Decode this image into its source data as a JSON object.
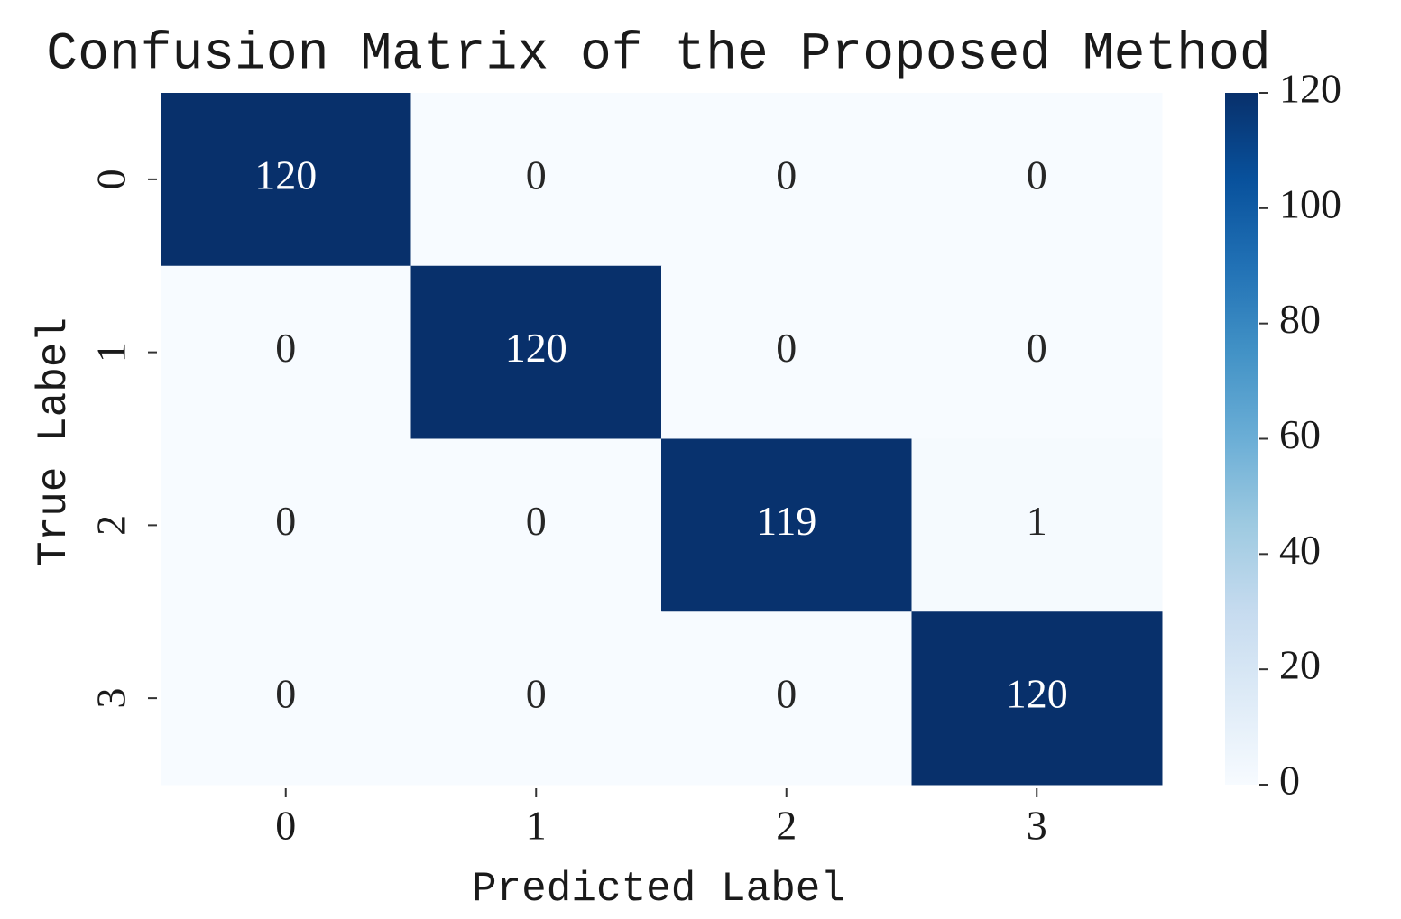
{
  "chart_data": {
    "type": "heatmap",
    "title": "Confusion Matrix of the Proposed Method",
    "x_label": "Predicted Label",
    "y_label": "True Label",
    "x_categories": [
      "0",
      "1",
      "2",
      "3"
    ],
    "y_categories": [
      "0",
      "1",
      "2",
      "3"
    ],
    "values": [
      [
        120,
        0,
        0,
        0
      ],
      [
        0,
        120,
        0,
        0
      ],
      [
        0,
        0,
        119,
        1
      ],
      [
        0,
        0,
        0,
        120
      ]
    ],
    "clim": [
      0,
      120
    ],
    "colorbar_ticks": [
      0,
      20,
      40,
      60,
      80,
      100,
      120
    ],
    "colormap": [
      "#f7fbff",
      "#deebf7",
      "#c6dbef",
      "#9ecae1",
      "#6baed6",
      "#4292c6",
      "#2171b5",
      "#08519c",
      "#08306b"
    ]
  }
}
